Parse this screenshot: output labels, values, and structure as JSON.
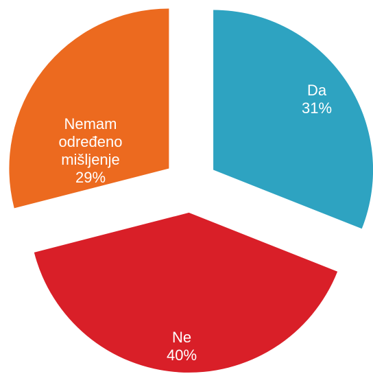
{
  "chart_data": {
    "type": "pie",
    "categories": [
      "Da",
      "Ne",
      "Nemam određeno mišljenje"
    ],
    "values": [
      31,
      40,
      29
    ],
    "value_labels": [
      "31%",
      "40%",
      "29%"
    ],
    "colors": [
      "#2ea3c1",
      "#d91f28",
      "#ec6a1f"
    ]
  }
}
